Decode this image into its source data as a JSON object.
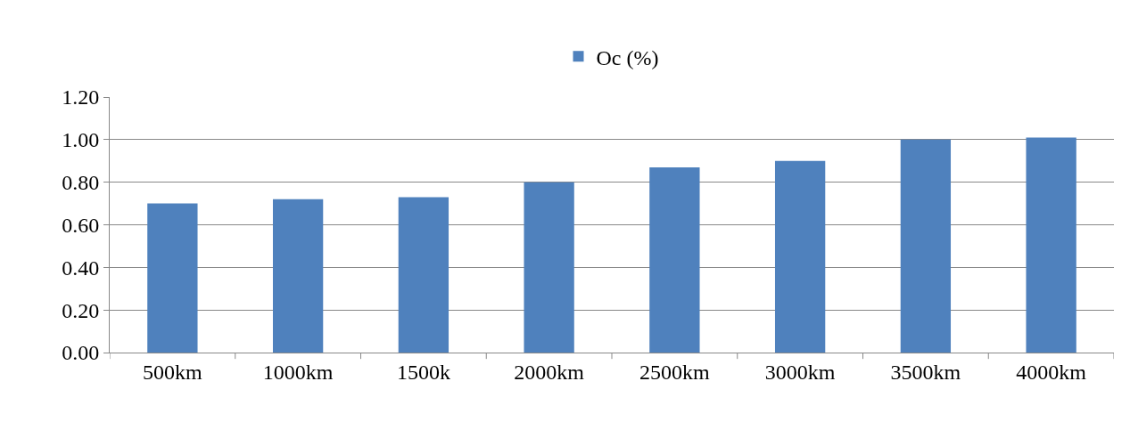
{
  "chart_data": {
    "type": "bar",
    "categories": [
      "500km",
      "1000km",
      "1500k",
      "2000km",
      "2500km",
      "3000km",
      "3500km",
      "4000km"
    ],
    "series": [
      {
        "name": "Oc (%)",
        "color": "#4f81bd",
        "values": [
          0.7,
          0.72,
          0.73,
          0.8,
          0.87,
          0.9,
          1.0,
          1.01
        ]
      }
    ],
    "ylim": [
      0,
      1.2
    ],
    "yticks": [
      {
        "value": 0,
        "label": "0.00"
      },
      {
        "value": 0.2,
        "label": "0.20"
      },
      {
        "value": 0.4,
        "label": "0.40"
      },
      {
        "value": 0.6,
        "label": "0.60"
      },
      {
        "value": 0.8,
        "label": "0.80"
      },
      {
        "value": 1.0,
        "label": "1.00"
      },
      {
        "value": 1.2,
        "label": "1.20"
      }
    ],
    "grid": "y",
    "legend": "top"
  }
}
